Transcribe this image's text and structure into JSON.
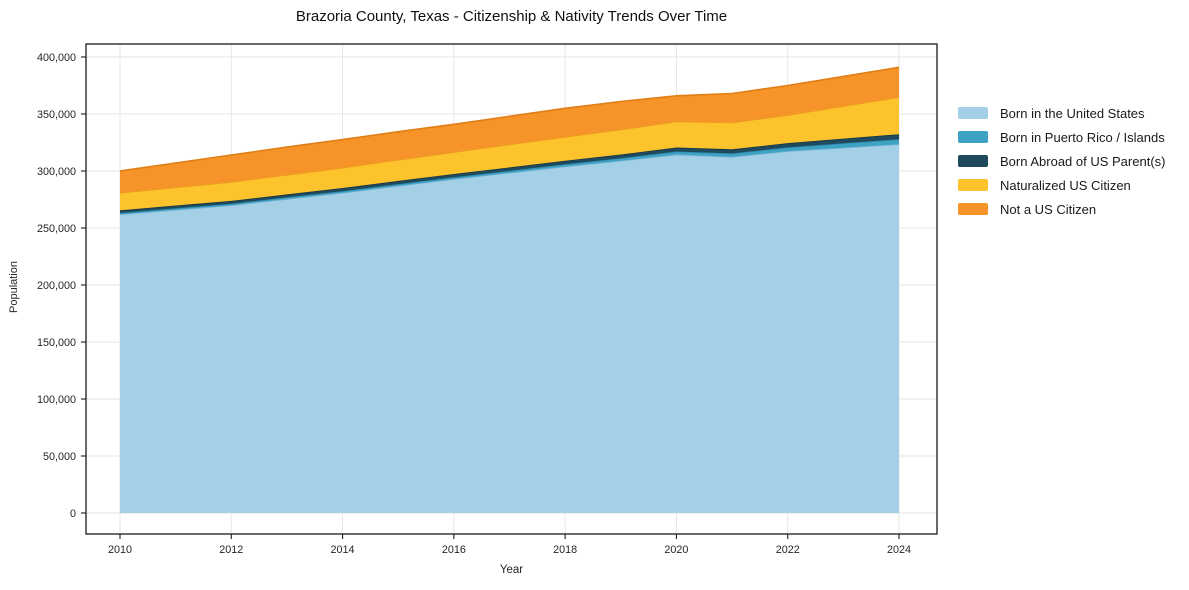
{
  "chart": {
    "title": "Brazoria County, Texas - Citizenship & Nativity Trends Over Time",
    "xlabel": "Year",
    "ylabel": "Population"
  },
  "chart_data": {
    "type": "area",
    "stacked": true,
    "title": "Brazoria County, Texas - Citizenship & Nativity Trends Over Time",
    "xlabel": "Year",
    "ylabel": "Population",
    "grid": true,
    "legend_position": "right",
    "xlim": [
      2009.4,
      2024.7
    ],
    "ylim": [
      0,
      400000
    ],
    "x": [
      2010,
      2011,
      2012,
      2013,
      2014,
      2015,
      2016,
      2017,
      2018,
      2019,
      2020,
      2021,
      2022,
      2023,
      2024
    ],
    "x_ticks": [
      2010,
      2012,
      2014,
      2016,
      2018,
      2020,
      2022,
      2024
    ],
    "x_tick_labels": [
      "2010",
      "2012",
      "2014",
      "2016",
      "2018",
      "2020",
      "2022",
      "2024"
    ],
    "y_ticks": [
      0,
      50000,
      100000,
      150000,
      200000,
      250000,
      300000,
      350000,
      400000
    ],
    "y_tick_labels": [
      "0",
      "50,000",
      "100,000",
      "150,000",
      "200,000",
      "250,000",
      "300,000",
      "350,000",
      "400,000"
    ],
    "series": [
      {
        "name": "Born in the United States",
        "color": "#a3d0e6",
        "edge": "#74b2d4",
        "values": [
          262000,
          266000,
          270000,
          275500,
          281000,
          287000,
          293000,
          298500,
          304000,
          309000,
          314500,
          312500,
          317500,
          320500,
          323500
        ]
      },
      {
        "name": "Born in Puerto Rico / Islands",
        "color": "#3ea2c3",
        "edge": "#2f8cab",
        "values": [
          1200,
          1300,
          1300,
          1400,
          1400,
          1500,
          1500,
          1700,
          1900,
          2200,
          2600,
          2900,
          3200,
          3800,
          4400
        ]
      },
      {
        "name": "Born Abroad of US Parent(s)",
        "color": "#1f4a5e",
        "edge": "#163845",
        "values": [
          2300,
          2400,
          2500,
          2600,
          2700,
          2800,
          2900,
          3000,
          3100,
          3300,
          3500,
          3600,
          3800,
          4100,
          4400
        ]
      },
      {
        "name": "Naturalized US Citizen",
        "color": "#fcc32d",
        "edge": "#ec9d1f",
        "values": [
          15500,
          16000,
          16600,
          17200,
          17800,
          18500,
          19200,
          20100,
          21000,
          21900,
          22800,
          23600,
          24500,
          28500,
          32500
        ]
      },
      {
        "name": "Not a US Citizen",
        "color": "#f79429",
        "edge": "#e07d15",
        "values": [
          19000,
          21300,
          23600,
          24300,
          24600,
          24700,
          24400,
          24700,
          25000,
          24600,
          22600,
          25400,
          26000,
          26100,
          26200
        ]
      }
    ],
    "colors": {
      "grid": "#e6e6e6",
      "frame": "#1a1a1a",
      "tick_label": "#262626",
      "background": "#ffffff"
    }
  }
}
